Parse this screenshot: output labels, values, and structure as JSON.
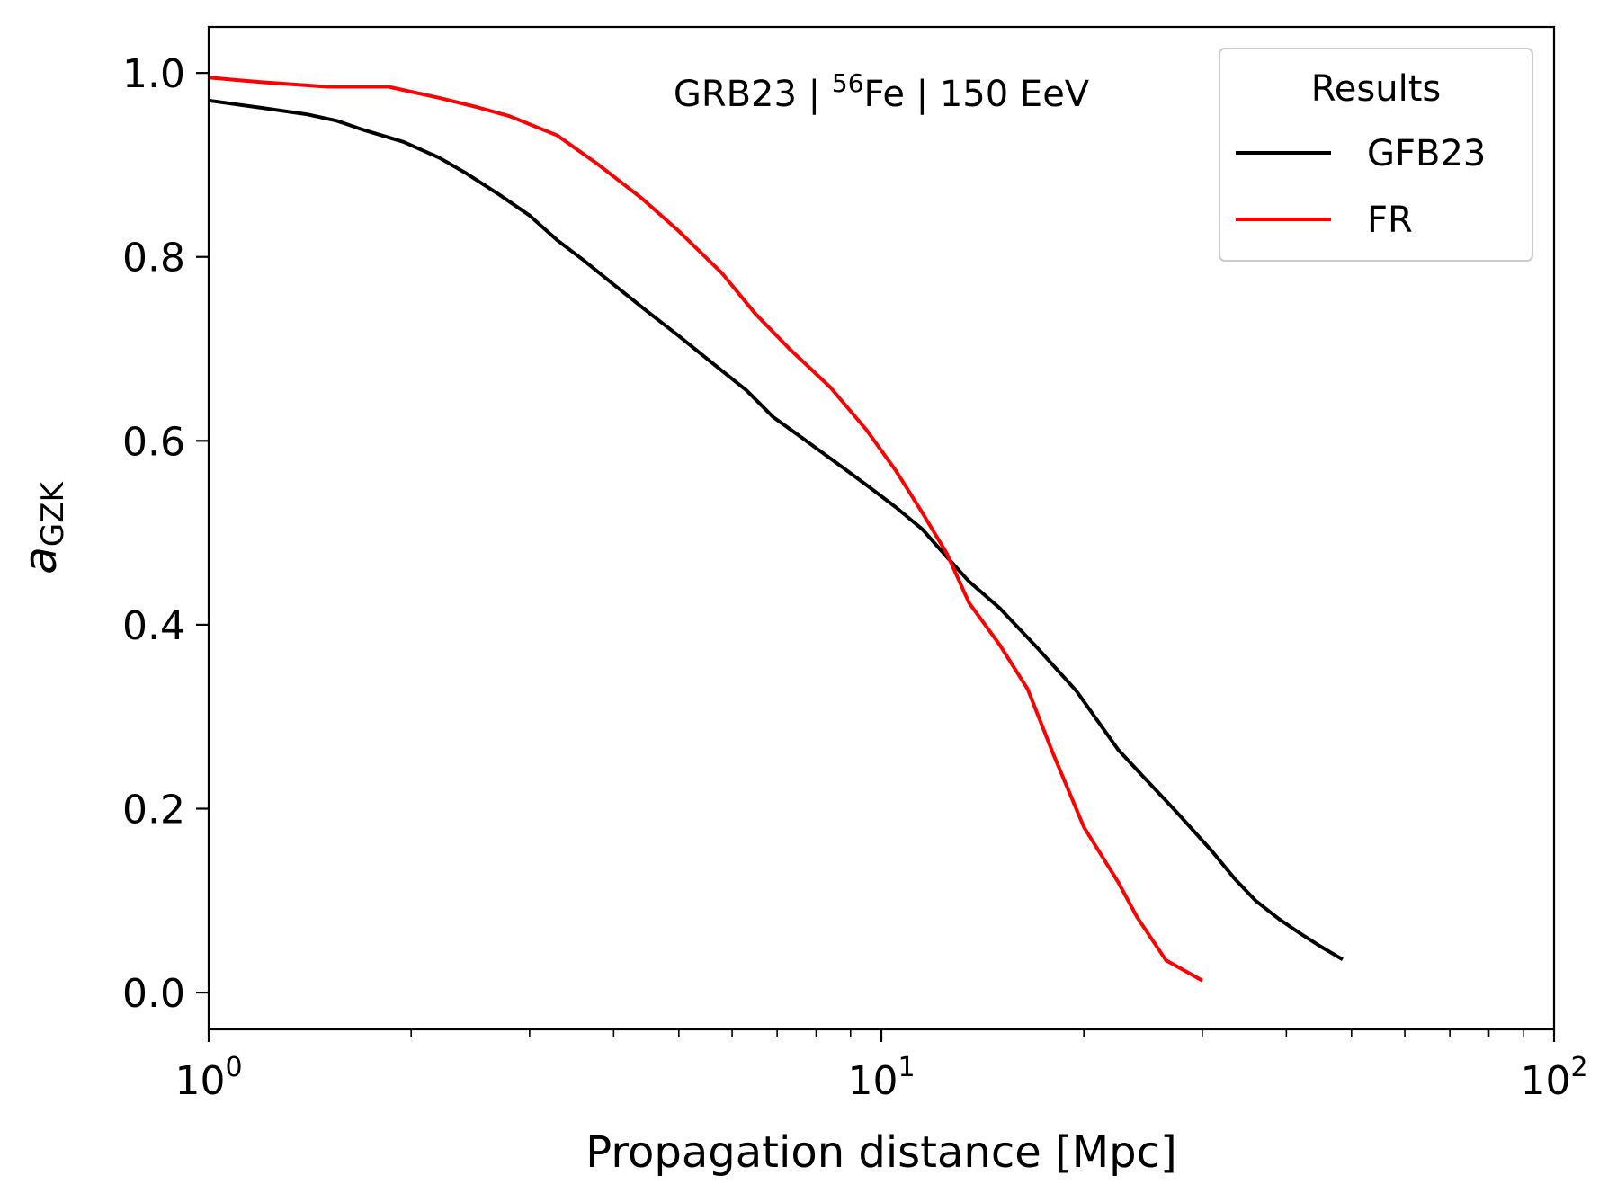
{
  "chart_data": {
    "type": "line",
    "annotation": {
      "prefix": "GRB23 | ",
      "sup": "56",
      "suffix": "Fe | 150 EeV"
    },
    "xlabel": "Propagation distance [Mpc]",
    "ylabel": {
      "base": "a",
      "sub": "GZK"
    },
    "xscale": "log",
    "xlim": [
      1,
      100
    ],
    "ylim": [
      -0.04,
      1.05
    ],
    "xticks": [
      {
        "value": 1,
        "base": "10",
        "exp": "0"
      },
      {
        "value": 10,
        "base": "10",
        "exp": "1"
      },
      {
        "value": 100,
        "base": "10",
        "exp": "2"
      }
    ],
    "yticks": [
      {
        "value": 0.0,
        "label": "0.0"
      },
      {
        "value": 0.2,
        "label": "0.2"
      },
      {
        "value": 0.4,
        "label": "0.4"
      },
      {
        "value": 0.6,
        "label": "0.6"
      },
      {
        "value": 0.8,
        "label": "0.8"
      },
      {
        "value": 1.0,
        "label": "1.0"
      }
    ],
    "grid": false,
    "legend": {
      "title": "Results",
      "placement": "top-right"
    },
    "series": [
      {
        "name": "GFB23",
        "color": "#000000",
        "x": [
          1.0,
          1.2,
          1.4,
          1.55,
          1.7,
          1.95,
          2.2,
          2.4,
          2.7,
          3.0,
          3.3,
          3.6,
          4.0,
          4.5,
          5.0,
          5.6,
          6.3,
          6.9,
          7.6,
          8.5,
          9.5,
          10.5,
          11.5,
          12.5,
          13.5,
          15.0,
          17.0,
          19.5,
          22.5,
          24.5,
          27.5,
          31.0,
          33.5,
          36.0,
          39.0,
          42.0,
          45.0,
          48.5
        ],
        "y": [
          0.97,
          0.962,
          0.955,
          0.948,
          0.938,
          0.925,
          0.908,
          0.892,
          0.868,
          0.845,
          0.818,
          0.797,
          0.77,
          0.74,
          0.714,
          0.685,
          0.655,
          0.626,
          0.604,
          0.578,
          0.552,
          0.528,
          0.504,
          0.474,
          0.447,
          0.418,
          0.376,
          0.328,
          0.264,
          0.235,
          0.196,
          0.154,
          0.124,
          0.1,
          0.08,
          0.064,
          0.05,
          0.036
        ]
      },
      {
        "name": "FR",
        "color": "#ff0000",
        "x": [
          1.0,
          1.2,
          1.5,
          1.85,
          2.2,
          2.5,
          2.8,
          3.3,
          3.8,
          4.4,
          5.0,
          5.8,
          6.5,
          7.3,
          8.4,
          9.5,
          10.5,
          11.5,
          12.5,
          13.5,
          15.0,
          16.5,
          18.0,
          20.0,
          22.5,
          24.0,
          26.5,
          30.0
        ],
        "y": [
          0.995,
          0.99,
          0.985,
          0.985,
          0.973,
          0.963,
          0.953,
          0.932,
          0.9,
          0.864,
          0.828,
          0.782,
          0.738,
          0.7,
          0.658,
          0.612,
          0.568,
          0.522,
          0.478,
          0.424,
          0.378,
          0.33,
          0.26,
          0.18,
          0.12,
          0.082,
          0.035,
          0.013
        ]
      }
    ]
  }
}
